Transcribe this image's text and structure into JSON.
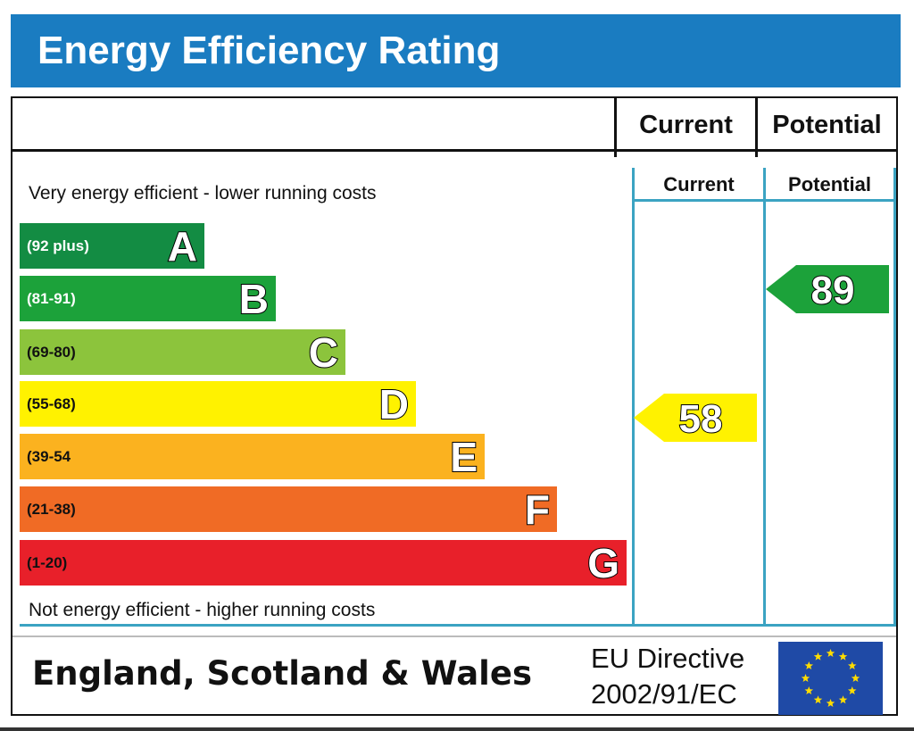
{
  "header": {
    "title": "Energy Efficiency Rating"
  },
  "columns": {
    "current_label": "Current",
    "potential_label": "Potential"
  },
  "chart_data": {
    "type": "bar",
    "title": "Energy Efficiency Rating",
    "top_note": "Very energy efficient - lower running costs",
    "bottom_note": "Not energy efficient - higher running costs",
    "bands": [
      {
        "letter": "A",
        "range": "(92 plus)",
        "color": "#138c43",
        "range_color": "#ffffff"
      },
      {
        "letter": "B",
        "range": "(81-91)",
        "color": "#1ca23a",
        "range_color": "#ffffff"
      },
      {
        "letter": "C",
        "range": "(69-80)",
        "color": "#8cc43c",
        "range_color": "#111111"
      },
      {
        "letter": "D",
        "range": "(55-68)",
        "color": "#fff200",
        "range_color": "#111111"
      },
      {
        "letter": "E",
        "range": "(39-54",
        "color": "#fbb21f",
        "range_color": "#111111"
      },
      {
        "letter": "F",
        "range": "(21-38)",
        "color": "#f06b25",
        "range_color": "#111111"
      },
      {
        "letter": "G",
        "range": "(1-20)",
        "color": "#e8202a",
        "range_color": "#111111"
      }
    ],
    "current": {
      "label": "Current",
      "value": 58,
      "band": "D",
      "color": "#fff200"
    },
    "potential": {
      "label": "Potential",
      "value": 89,
      "band": "B",
      "color": "#1ca23a"
    }
  },
  "footer": {
    "region": "England, Scotland & Wales",
    "directive_line1": "EU Directive",
    "directive_line2": "2002/91/EC"
  },
  "colors": {
    "title_bar": "#1a7cc1",
    "flag": "#1f4aa6",
    "star": "#ffdd00",
    "inner_lines": "#3ba3c2"
  }
}
